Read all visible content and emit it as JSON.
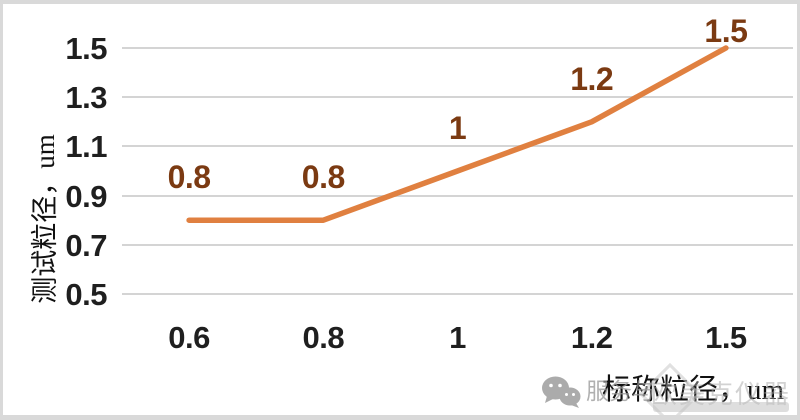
{
  "chart_data": {
    "type": "line",
    "categories": [
      "0.6",
      "0.8",
      "1",
      "1.2",
      "1.5"
    ],
    "series": [
      {
        "name": "测试粒径",
        "values": [
          0.8,
          0.8,
          1.0,
          1.2,
          1.5
        ],
        "data_labels": [
          "0.8",
          "0.8",
          "1",
          "1.2",
          "1.5"
        ]
      }
    ],
    "xlabel": "标称粒径，um",
    "ylabel": "测试粒径，um",
    "y_ticks": [
      1.5,
      1.3,
      1.1,
      0.9,
      0.7,
      0.5
    ],
    "ylim": [
      0.5,
      1.5
    ],
    "grid": true,
    "legend": false,
    "line_color": "#E08040",
    "data_label_color": "#7B3A12",
    "tick_color": "#1F1F1F",
    "gridline_color": "#D4D4D4"
  },
  "watermark": {
    "wechat_icon": "wechat-icon",
    "text_left": "服务与",
    "text_right": "欧美克仪器"
  }
}
